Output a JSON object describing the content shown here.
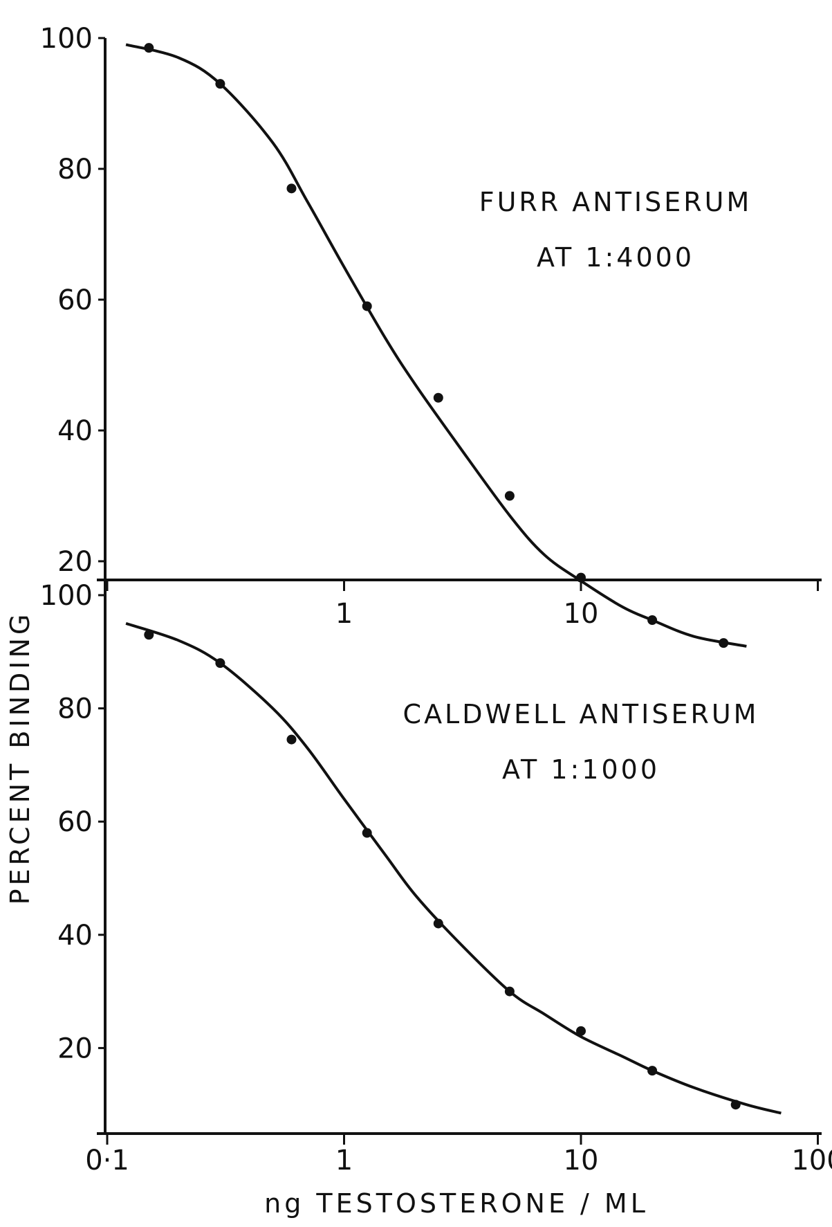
{
  "chart_data": [
    {
      "type": "scatter",
      "x_scale": "log",
      "xlim": [
        0.1,
        100
      ],
      "ylim": [
        0,
        100
      ],
      "annotation_lines": [
        "FURR ANTISERUM",
        "AT 1:4000"
      ],
      "x_ticks": [
        0.1,
        1,
        10,
        100
      ],
      "x_tick_labels": [
        "",
        "1",
        "10",
        ""
      ],
      "y_ticks": [
        20,
        40,
        60,
        80,
        100
      ],
      "y_tick_labels": [
        "20",
        "40",
        "60",
        "80",
        "100"
      ],
      "points": {
        "x": [
          0.15,
          0.3,
          0.6,
          1.25,
          2.5,
          5,
          10,
          20,
          40
        ],
        "y": [
          98.5,
          93,
          77,
          59,
          45,
          30,
          17.5,
          11,
          7.5
        ]
      },
      "fit_curve": {
        "x": [
          0.12,
          0.2,
          0.3,
          0.5,
          0.7,
          1,
          1.5,
          2,
          3,
          5,
          7,
          10,
          15,
          20,
          30,
          50
        ],
        "y": [
          99,
          97,
          93,
          84,
          75,
          65,
          54,
          47,
          38,
          27,
          21,
          17,
          13,
          11,
          8.5,
          7
        ]
      }
    },
    {
      "type": "scatter",
      "x_scale": "log",
      "xlim": [
        0.1,
        100
      ],
      "ylim": [
        0,
        100
      ],
      "annotation_lines": [
        "CALDWELL ANTISERUM",
        "AT 1:1000"
      ],
      "x_ticks": [
        0.1,
        1,
        10,
        100
      ],
      "x_tick_labels": [
        "0·1",
        "1",
        "10",
        "100"
      ],
      "y_ticks": [
        20,
        40,
        60,
        80,
        100
      ],
      "y_tick_labels": [
        "20",
        "40",
        "60",
        "80",
        "100"
      ],
      "points": {
        "x": [
          0.15,
          0.3,
          0.6,
          1.25,
          2.5,
          5,
          10,
          20,
          45
        ],
        "y": [
          93,
          88,
          74.5,
          58,
          42,
          30,
          23,
          16,
          10
        ]
      },
      "fit_curve": {
        "x": [
          0.12,
          0.2,
          0.3,
          0.5,
          0.7,
          1,
          1.5,
          2,
          3,
          5,
          7,
          10,
          15,
          20,
          30,
          50,
          70
        ],
        "y": [
          95,
          92,
          88,
          80,
          73,
          64,
          54,
          47,
          39,
          30,
          26,
          22,
          18.5,
          16,
          13,
          10,
          8.5
        ]
      }
    }
  ],
  "shared_axes": {
    "xlabel": "ng TESTOSTERONE / ML",
    "ylabel": "PERCENT BINDING"
  }
}
